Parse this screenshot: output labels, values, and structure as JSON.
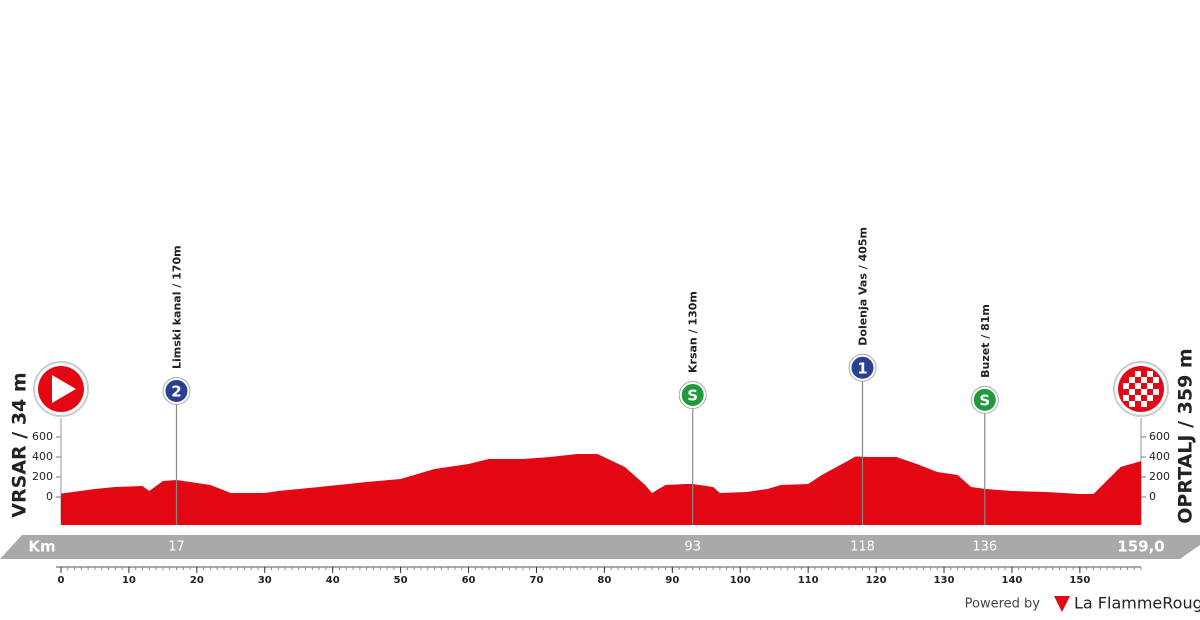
{
  "chart_data": {
    "type": "area",
    "start_label": "VRSAR / 34 m",
    "finish_label": "OPRTALJ / 359 m",
    "x": [
      0,
      5,
      8,
      12,
      13,
      15,
      17,
      20,
      22,
      25,
      30,
      32,
      35,
      38,
      45,
      50,
      52,
      55,
      60,
      63,
      68,
      72,
      76,
      79,
      83,
      86,
      87,
      89,
      92,
      93,
      96,
      97,
      101,
      104,
      106,
      110,
      112,
      115,
      117,
      119,
      123,
      126,
      129,
      132,
      134,
      136,
      140,
      145,
      150,
      152,
      156,
      159
    ],
    "values": [
      34,
      80,
      100,
      110,
      60,
      160,
      170,
      140,
      120,
      40,
      40,
      60,
      80,
      100,
      150,
      180,
      220,
      280,
      330,
      380,
      380,
      400,
      430,
      430,
      300,
      120,
      40,
      120,
      130,
      130,
      100,
      40,
      50,
      80,
      120,
      130,
      220,
      330,
      405,
      400,
      400,
      330,
      250,
      220,
      100,
      81,
      60,
      50,
      30,
      30,
      300,
      359
    ],
    "color": "#e30613",
    "xlim": [
      0,
      159
    ],
    "xticks": [
      0,
      10,
      20,
      30,
      40,
      50,
      60,
      70,
      80,
      90,
      100,
      110,
      120,
      130,
      140,
      150
    ],
    "ylim": [
      -280,
      720
    ],
    "yticks": [
      0,
      200,
      400,
      600
    ],
    "x_label": "Km",
    "climbs": [
      {
        "km": 17,
        "name": "Limski kanal / 170m",
        "icon": "2",
        "color": "#2b3f8f"
      },
      {
        "km": 93,
        "name": "Krsan / 130m",
        "icon": "S",
        "color": "#1e9a3c"
      },
      {
        "km": 118,
        "name": "Dolenja Vas / 405m",
        "icon": "1",
        "color": "#2b3f8f"
      },
      {
        "km": 136,
        "name": "Buzet / 81m",
        "icon": "S",
        "color": "#1e9a3c"
      }
    ],
    "finish_km": {
      "value": 159,
      "label": "159,0"
    },
    "credit": "Powered by",
    "brand": "La FlammeRouge"
  }
}
